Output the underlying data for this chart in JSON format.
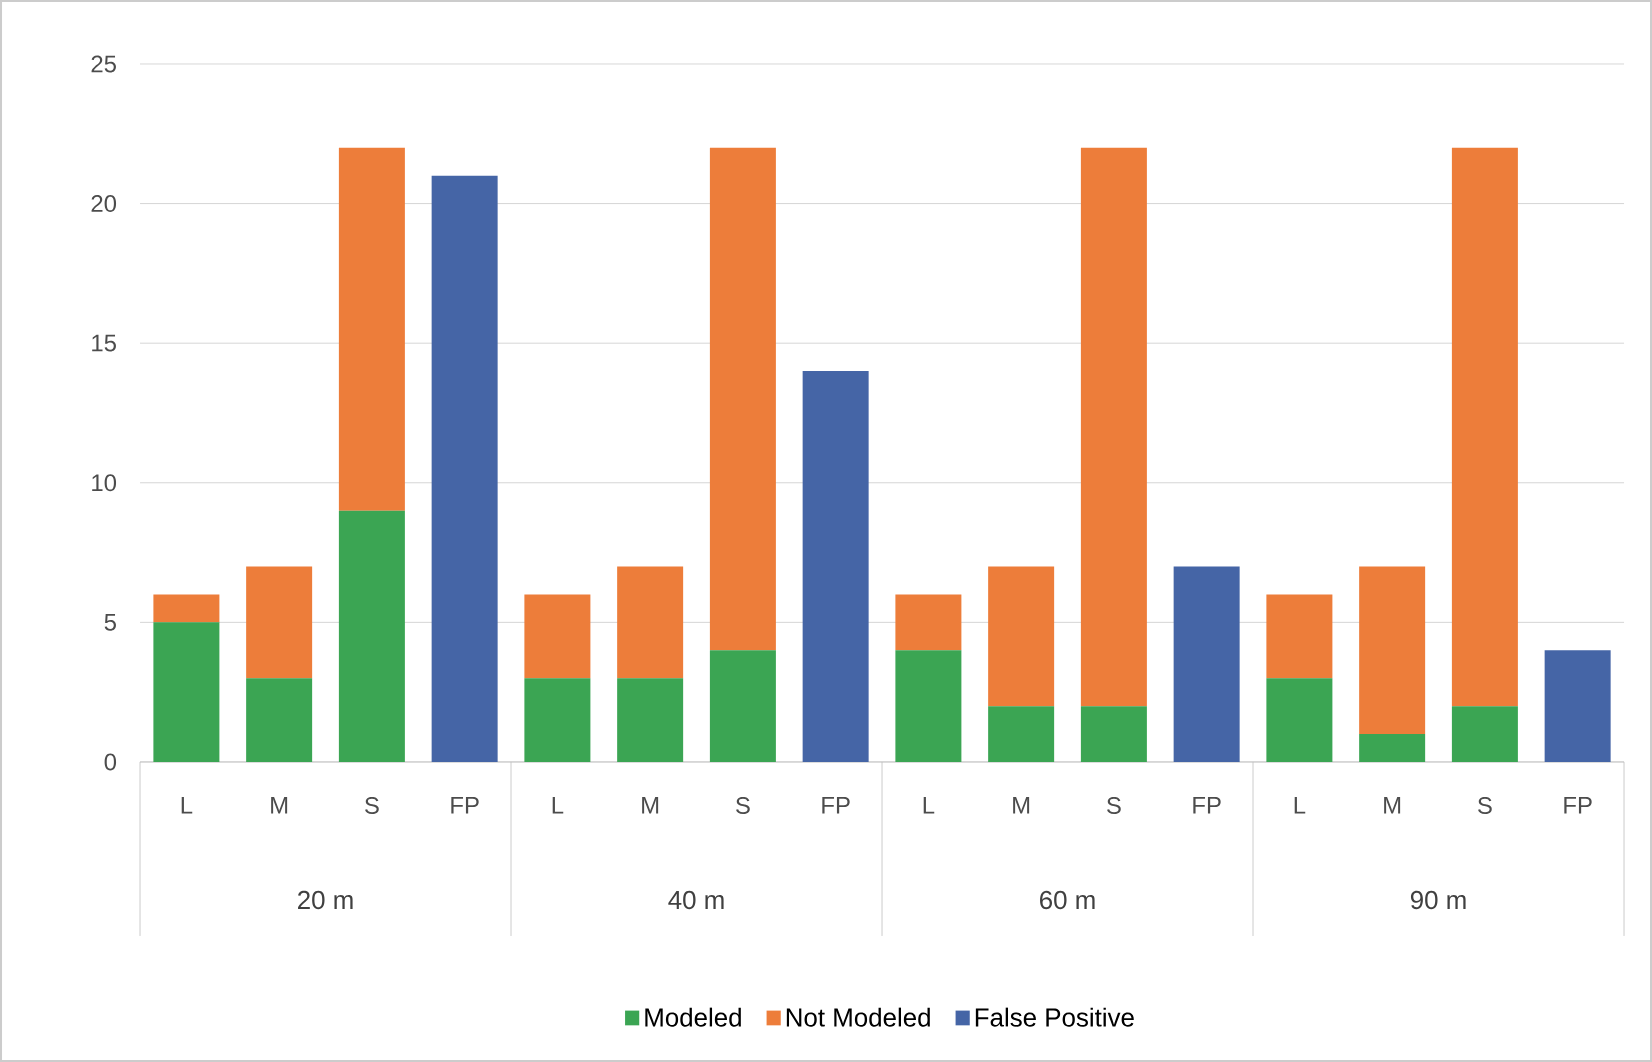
{
  "chart_data": {
    "type": "bar",
    "stacked": true,
    "legend": "bottom",
    "grid": "y",
    "categories": [
      "L",
      "M",
      "S",
      "FP",
      "L",
      "M",
      "S",
      "FP",
      "L",
      "M",
      "S",
      "FP",
      "L",
      "M",
      "S",
      "FP"
    ],
    "annotations": [
      "20 m",
      "40 m",
      "60 m",
      "90 m"
    ],
    "ylim": [
      0,
      25
    ],
    "yticks": [
      0,
      5,
      10,
      15,
      20,
      25
    ],
    "series": [
      {
        "name": "Modeled",
        "color": "#3ba553",
        "values": [
          5,
          3,
          9,
          null,
          3,
          3,
          4,
          null,
          4,
          2,
          2,
          null,
          3,
          1,
          2,
          null
        ]
      },
      {
        "name": "Not Modeled",
        "color": "#ed7d3a",
        "values": [
          1,
          4,
          13,
          null,
          3,
          4,
          18,
          null,
          2,
          5,
          20,
          null,
          3,
          6,
          20,
          null
        ]
      },
      {
        "name": "False Positive",
        "color": "#4565a6",
        "values": [
          null,
          null,
          null,
          21,
          null,
          null,
          null,
          14,
          null,
          null,
          null,
          7,
          null,
          null,
          null,
          4
        ]
      }
    ]
  }
}
